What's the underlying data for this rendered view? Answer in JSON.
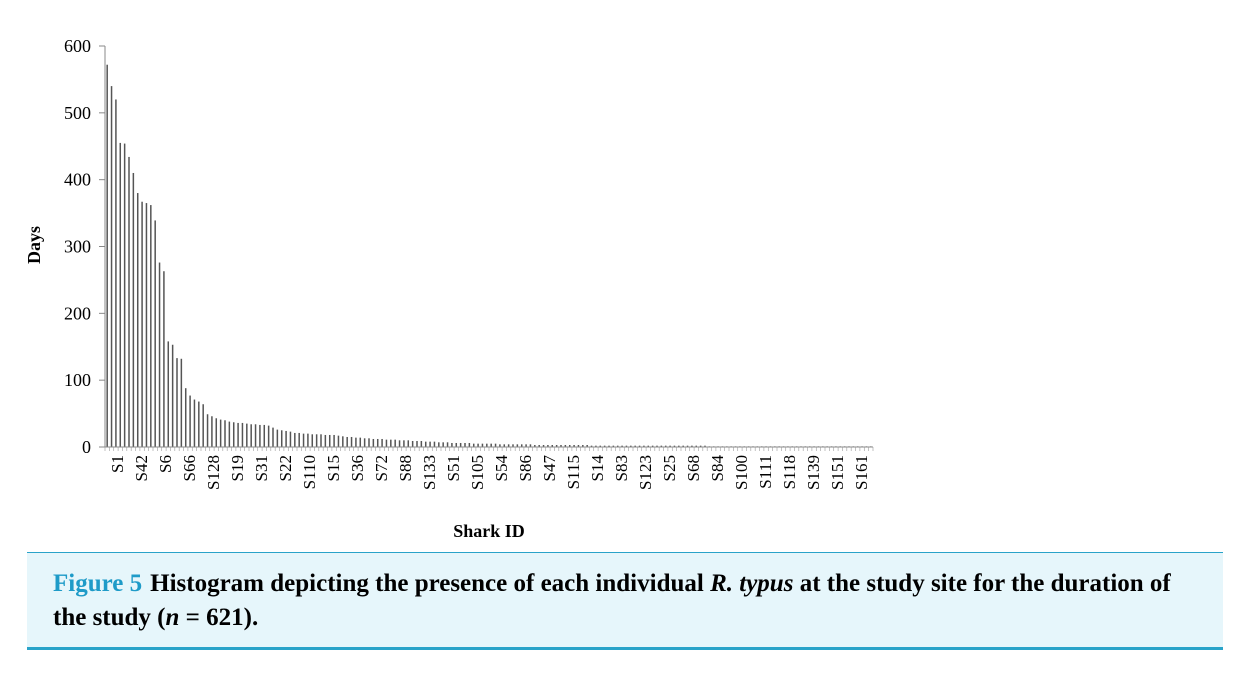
{
  "chart_data": {
    "type": "bar",
    "xlabel": "Shark ID",
    "ylabel": "Days",
    "ylim": [
      0,
      600
    ],
    "yticks": [
      0,
      100,
      200,
      300,
      400,
      500,
      600
    ],
    "tick_labels": [
      "S1",
      "S42",
      "S6",
      "S66",
      "S128",
      "S19",
      "S31",
      "S22",
      "S110",
      "S15",
      "S36",
      "S72",
      "S88",
      "S133",
      "S51",
      "S105",
      "S54",
      "S86",
      "S47",
      "S115",
      "S14",
      "S83",
      "S123",
      "S25",
      "S68",
      "S84",
      "S100",
      "S111",
      "S118",
      "S139",
      "S151",
      "S161"
    ],
    "grid": false,
    "legend": "none",
    "bar_color": "#555555",
    "values": [
      572,
      540,
      520,
      455,
      454,
      434,
      410,
      380,
      367,
      365,
      362,
      339,
      276,
      263,
      158,
      153,
      133,
      132,
      88,
      77,
      71,
      68,
      64,
      49,
      46,
      43,
      41,
      40,
      38,
      37,
      36,
      36,
      35,
      34,
      34,
      33,
      33,
      32,
      29,
      26,
      25,
      24,
      23,
      21,
      21,
      20,
      20,
      19,
      19,
      19,
      18,
      18,
      18,
      17,
      16,
      15,
      15,
      14,
      14,
      13,
      13,
      12,
      12,
      12,
      11,
      11,
      11,
      10,
      10,
      10,
      9,
      9,
      9,
      8,
      8,
      8,
      7,
      7,
      7,
      6,
      6,
      6,
      6,
      6,
      5,
      5,
      5,
      5,
      5,
      5,
      4,
      4,
      4,
      4,
      4,
      4,
      4,
      4,
      3,
      3,
      3,
      3,
      3,
      3,
      3,
      3,
      3,
      3,
      3,
      3,
      3,
      2,
      2,
      2,
      2,
      2,
      2,
      2,
      2,
      2,
      2,
      2,
      2,
      2,
      2,
      2,
      2,
      2,
      2,
      2,
      2,
      2,
      2,
      2,
      2,
      2,
      2,
      2,
      1,
      1,
      1,
      1,
      1,
      1,
      1,
      1,
      1,
      1,
      1,
      1,
      1,
      1,
      1,
      1,
      1,
      1,
      1,
      1,
      1,
      1,
      1,
      1,
      1,
      1,
      1,
      1,
      1,
      1,
      1,
      1,
      1,
      1,
      1,
      1,
      1,
      1
    ]
  },
  "caption": {
    "label": "Figure 5",
    "text_before": "Histogram depicting the presence of each individual ",
    "species": "R. typus",
    "text_middle": " at the study site for the duration of the study (",
    "n_var": "n",
    "text_after": " = 621)."
  }
}
